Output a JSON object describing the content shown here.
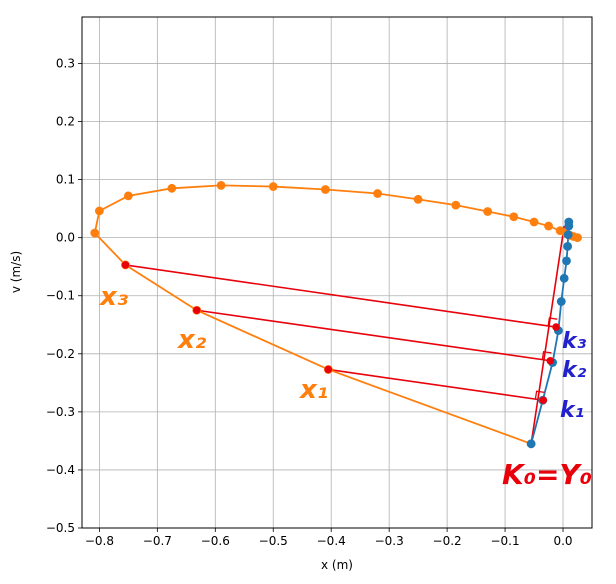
{
  "chart_data": {
    "type": "scatter",
    "title": "",
    "xlabel": "x (m)",
    "ylabel": "v (m/s)",
    "xlim": [
      -0.83,
      0.05
    ],
    "ylim": [
      -0.5,
      0.38
    ],
    "xticks": [
      -0.8,
      -0.7,
      -0.6,
      -0.5,
      -0.4,
      -0.3,
      -0.2,
      -0.1,
      0.0
    ],
    "xtick_labels": [
      "−0.8",
      "−0.7",
      "−0.6",
      "−0.5",
      "−0.4",
      "−0.3",
      "−0.2",
      "−0.1",
      "0.0"
    ],
    "yticks": [
      -0.5,
      -0.4,
      -0.3,
      -0.2,
      -0.1,
      0.0,
      0.1,
      0.2,
      0.3
    ],
    "ytick_labels": [
      "−0.5",
      "−0.4",
      "−0.3",
      "−0.2",
      "−0.1",
      "0.0",
      "0.1",
      "0.2",
      "0.3"
    ],
    "grid": true,
    "series": [
      {
        "color": "#ff7f0e",
        "x": [
          -0.055,
          -0.405,
          -0.632,
          -0.755,
          -0.808,
          -0.8,
          -0.75,
          -0.675,
          -0.59,
          -0.5,
          -0.41,
          -0.32,
          -0.25,
          -0.185,
          -0.13,
          -0.085,
          -0.05,
          -0.025,
          -0.005,
          0.005,
          0.012,
          0.018,
          0.025
        ],
        "y": [
          -0.355,
          -0.227,
          -0.125,
          -0.047,
          0.008,
          0.046,
          0.072,
          0.085,
          0.09,
          0.088,
          0.083,
          0.076,
          0.066,
          0.056,
          0.045,
          0.036,
          0.027,
          0.02,
          0.012,
          0.008,
          0.004,
          0.002,
          0.0
        ]
      },
      {
        "color": "#1f77b4",
        "x": [
          -0.055,
          -0.035,
          -0.018,
          -0.008,
          -0.003,
          0.002,
          0.006,
          0.008,
          0.009,
          0.01,
          0.01
        ],
        "y": [
          -0.355,
          -0.28,
          -0.215,
          -0.16,
          -0.11,
          -0.07,
          -0.04,
          -0.015,
          0.005,
          0.02,
          0.027
        ]
      }
    ],
    "annotation_color": "#e8000b",
    "projections": [
      {
        "from": [
          -0.405,
          -0.227
        ],
        "to": [
          -0.034,
          -0.28
        ]
      },
      {
        "from": [
          -0.632,
          -0.125
        ],
        "to": [
          -0.022,
          -0.212
        ]
      },
      {
        "from": [
          -0.755,
          -0.047
        ],
        "to": [
          -0.012,
          -0.154
        ]
      }
    ],
    "subspace_line": {
      "from": [
        -0.055,
        -0.355
      ],
      "to": [
        0.002,
        0.02
      ]
    },
    "annotations": {
      "x3": "x₃",
      "x2": "x₂",
      "x1": "x₁",
      "k3": "k₃",
      "k2": "k₂",
      "k1": "k₁",
      "k0": "K₀=Y₀"
    }
  }
}
